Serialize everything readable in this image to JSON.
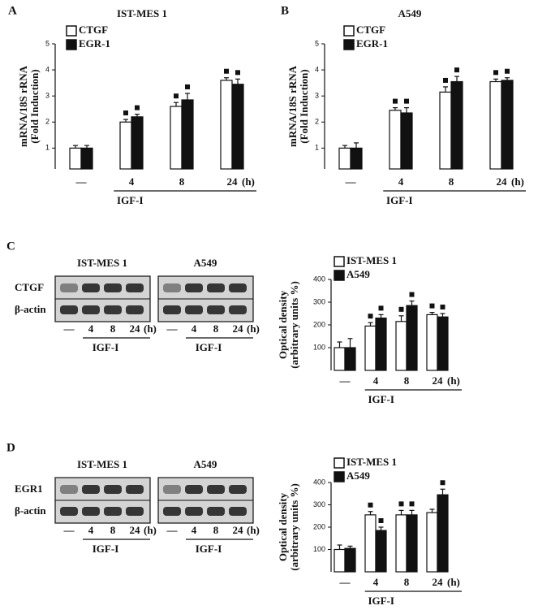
{
  "panels": [
    "A",
    "B",
    "C",
    "D"
  ],
  "chart_data": [
    {
      "type": "bar",
      "title": "IST-MES 1",
      "ylabel": [
        "mRNA/18S rRNA",
        "(Fold Induction)"
      ],
      "categories": [
        "—",
        "4",
        "8",
        "24"
      ],
      "x_unit": "(h)",
      "xlabel": "IGF-I",
      "ylim": [
        0.2,
        5
      ],
      "yticks": [
        1,
        2,
        3,
        4,
        5
      ],
      "series": [
        {
          "name": "CTGF",
          "color": "#ffffff",
          "values": [
            1.0,
            2.0,
            2.6,
            3.6
          ],
          "errors": [
            0.1,
            0.1,
            0.15,
            0.1
          ],
          "significant": [
            false,
            true,
            true,
            true
          ]
        },
        {
          "name": "EGR-1",
          "color": "#111111",
          "values": [
            1.0,
            2.2,
            2.85,
            3.45
          ],
          "errors": [
            0.1,
            0.1,
            0.25,
            0.2
          ],
          "significant": [
            false,
            true,
            true,
            true
          ]
        }
      ]
    },
    {
      "type": "bar",
      "title": "A549",
      "ylabel": [
        "mRNA/18S rRNA",
        "(Fold Induction)"
      ],
      "categories": [
        "—",
        "4",
        "8",
        "24"
      ],
      "x_unit": "(h)",
      "xlabel": "IGF-I",
      "ylim": [
        0.2,
        5
      ],
      "yticks": [
        1,
        2,
        3,
        4,
        5
      ],
      "series": [
        {
          "name": "CTGF",
          "color": "#ffffff",
          "values": [
            1.0,
            2.45,
            3.15,
            3.55
          ],
          "errors": [
            0.1,
            0.1,
            0.2,
            0.1
          ],
          "significant": [
            false,
            true,
            true,
            true
          ]
        },
        {
          "name": "EGR-1",
          "color": "#111111",
          "values": [
            1.0,
            2.35,
            3.55,
            3.6
          ],
          "errors": [
            0.2,
            0.2,
            0.2,
            0.1
          ],
          "significant": [
            false,
            true,
            true,
            true
          ]
        }
      ]
    },
    {
      "type": "bar",
      "ylabel": [
        "Optical density",
        "(arbitrary units %)"
      ],
      "categories": [
        "—",
        "4",
        "8",
        "24"
      ],
      "x_unit": "(h)",
      "xlabel": "IGF-I",
      "ylim": [
        0,
        400
      ],
      "yticks": [
        100,
        200,
        300,
        400
      ],
      "series": [
        {
          "name": "IST-MES 1",
          "color": "#ffffff",
          "values": [
            100,
            195,
            215,
            245
          ],
          "errors": [
            25,
            15,
            25,
            10
          ],
          "significant": [
            false,
            true,
            true,
            true
          ]
        },
        {
          "name": "A549",
          "color": "#111111",
          "values": [
            100,
            230,
            285,
            235
          ],
          "errors": [
            40,
            15,
            20,
            15
          ],
          "significant": [
            false,
            true,
            true,
            true
          ]
        }
      ]
    },
    {
      "type": "bar",
      "ylabel": [
        "Optical density",
        "(arbitrary units %)"
      ],
      "categories": [
        "—",
        "4",
        "8",
        "24"
      ],
      "x_unit": "(h)",
      "xlabel": "IGF-I",
      "ylim": [
        0,
        400
      ],
      "yticks": [
        100,
        200,
        300,
        400
      ],
      "series": [
        {
          "name": "IST-MES 1",
          "color": "#ffffff",
          "values": [
            100,
            255,
            255,
            265
          ],
          "errors": [
            20,
            15,
            20,
            15
          ],
          "significant": [
            false,
            true,
            true,
            false
          ]
        },
        {
          "name": "A549",
          "color": "#111111",
          "values": [
            105,
            185,
            255,
            345
          ],
          "errors": [
            10,
            15,
            20,
            25
          ],
          "significant": [
            false,
            true,
            true,
            true
          ]
        }
      ]
    }
  ],
  "blots": [
    {
      "groups": [
        "IST-MES 1",
        "A549"
      ],
      "rows": [
        "CTGF",
        "β-actin"
      ],
      "lanes": [
        "—",
        "4",
        "8",
        "24"
      ],
      "unit": "(h)",
      "treatment": "IGF-I"
    },
    {
      "groups": [
        "IST-MES 1",
        "A549"
      ],
      "rows": [
        "EGR1",
        "β-actin"
      ],
      "lanes": [
        "—",
        "4",
        "8",
        "24"
      ],
      "unit": "(h)",
      "treatment": "IGF-I"
    }
  ]
}
